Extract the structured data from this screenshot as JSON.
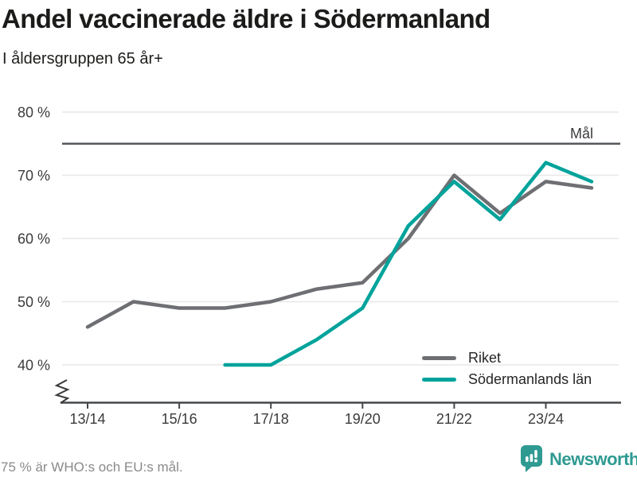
{
  "header": {
    "title": "Andel vaccinerade äldre i Södermanland",
    "subtitle": "I åldersgruppen 65 år+"
  },
  "chart_data": {
    "type": "line",
    "x": [
      "13/14",
      "14/15",
      "15/16",
      "16/17",
      "17/18",
      "18/19",
      "19/20",
      "20/21",
      "21/22",
      "22/23",
      "23/24",
      "24/25"
    ],
    "x_tick_labels": [
      "13/14",
      "15/16",
      "17/18",
      "19/20",
      "21/22",
      "23/24"
    ],
    "yticks": [
      40,
      50,
      60,
      70,
      80
    ],
    "ytick_suffix": " %",
    "ylim": [
      37,
      82
    ],
    "y_axis_break": true,
    "grid": "horizontal",
    "legend_position": "bottom-right",
    "series": [
      {
        "name": "Riket",
        "color": "#6e6f73",
        "values": [
          46,
          50,
          49,
          49,
          50,
          52,
          53,
          60,
          70,
          64,
          69,
          68
        ]
      },
      {
        "name": "Södermanlands län",
        "color": "#00a39b",
        "values": [
          null,
          null,
          null,
          40,
          40,
          44,
          49,
          62,
          69,
          63,
          72,
          69
        ]
      }
    ],
    "target_line": {
      "value": 75,
      "label": "Mål",
      "color": "#55585d"
    }
  },
  "footer": {
    "note": "75 % är WHO:s och EU:s mål.",
    "brand": "Newsworthy"
  },
  "colors": {
    "accent_teal": "#00a39b",
    "series_gray": "#6e6f73",
    "brand_teal": "#2f9a92",
    "grid": "#e7e7e7",
    "axis": "#45484b",
    "target": "#55585d",
    "muted_text": "#8a8a8a"
  }
}
